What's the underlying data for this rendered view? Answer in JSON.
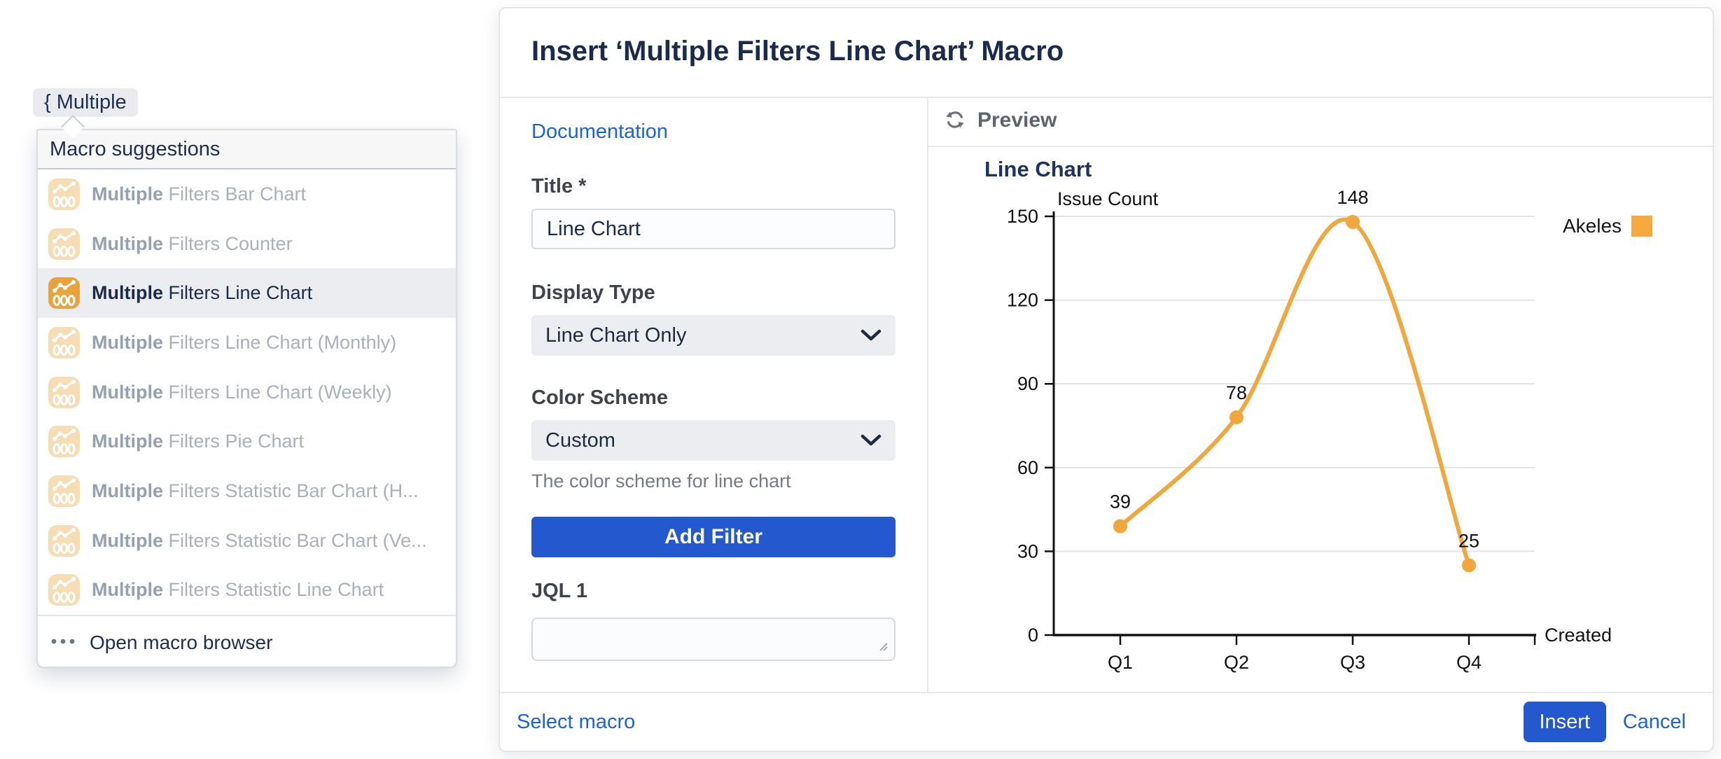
{
  "editor": {
    "macro_token": "{ Multiple"
  },
  "macro_menu": {
    "header": "Macro suggestions",
    "items": [
      {
        "bold": "Multiple",
        "rest": "Filters Bar Chart",
        "selected": false
      },
      {
        "bold": "Multiple",
        "rest": "Filters Counter",
        "selected": false
      },
      {
        "bold": "Multiple",
        "rest": "Filters Line Chart",
        "selected": true
      },
      {
        "bold": "Multiple",
        "rest": "Filters Line Chart (Monthly)",
        "selected": false
      },
      {
        "bold": "Multiple",
        "rest": "Filters Line Chart (Weekly)",
        "selected": false
      },
      {
        "bold": "Multiple",
        "rest": "Filters Pie Chart",
        "selected": false
      },
      {
        "bold": "Multiple",
        "rest": "Filters Statistic Bar Chart (H...",
        "selected": false
      },
      {
        "bold": "Multiple",
        "rest": "Filters Statistic Bar Chart (Ve...",
        "selected": false
      },
      {
        "bold": "Multiple",
        "rest": "Filters Statistic Line Chart",
        "selected": false
      }
    ],
    "footer": {
      "label": "Open macro browser"
    }
  },
  "dialog": {
    "title": "Insert ‘Multiple Filters Line Chart’ Macro",
    "documentation_link": "Documentation",
    "fields": {
      "title_label": "Title *",
      "title_value": "Line Chart",
      "display_type_label": "Display Type",
      "display_type_value": "Line Chart Only",
      "color_scheme_label": "Color Scheme",
      "color_scheme_value": "Custom",
      "color_scheme_help": "The color scheme for line chart",
      "add_filter_label": "Add Filter",
      "jql_label": "JQL 1",
      "jql_value": ""
    },
    "preview": {
      "header": "Preview"
    },
    "footer": {
      "select_macro": "Select macro",
      "insert": "Insert",
      "cancel": "Cancel"
    }
  },
  "chart_data": {
    "type": "line",
    "title": "Line Chart",
    "categories": [
      "Q1",
      "Q2",
      "Q3",
      "Q4"
    ],
    "series": [
      {
        "name": "Akeles",
        "color": "#F2A73D",
        "values": [
          39,
          78,
          148,
          25
        ]
      }
    ],
    "ylabel": "Issue Count",
    "xlabel": "Created",
    "ylim": [
      0,
      150
    ],
    "yticks": [
      0,
      30,
      60,
      90,
      120,
      150
    ],
    "grid": true,
    "legend_position": "right",
    "point_labels": true
  },
  "colors": {
    "accent_blue": "#2458CE",
    "link_blue": "#1B63DC",
    "line_orange": "#F2A73D",
    "legend_orange": "#F5A93F",
    "grid_gray": "#E4E4E4"
  }
}
